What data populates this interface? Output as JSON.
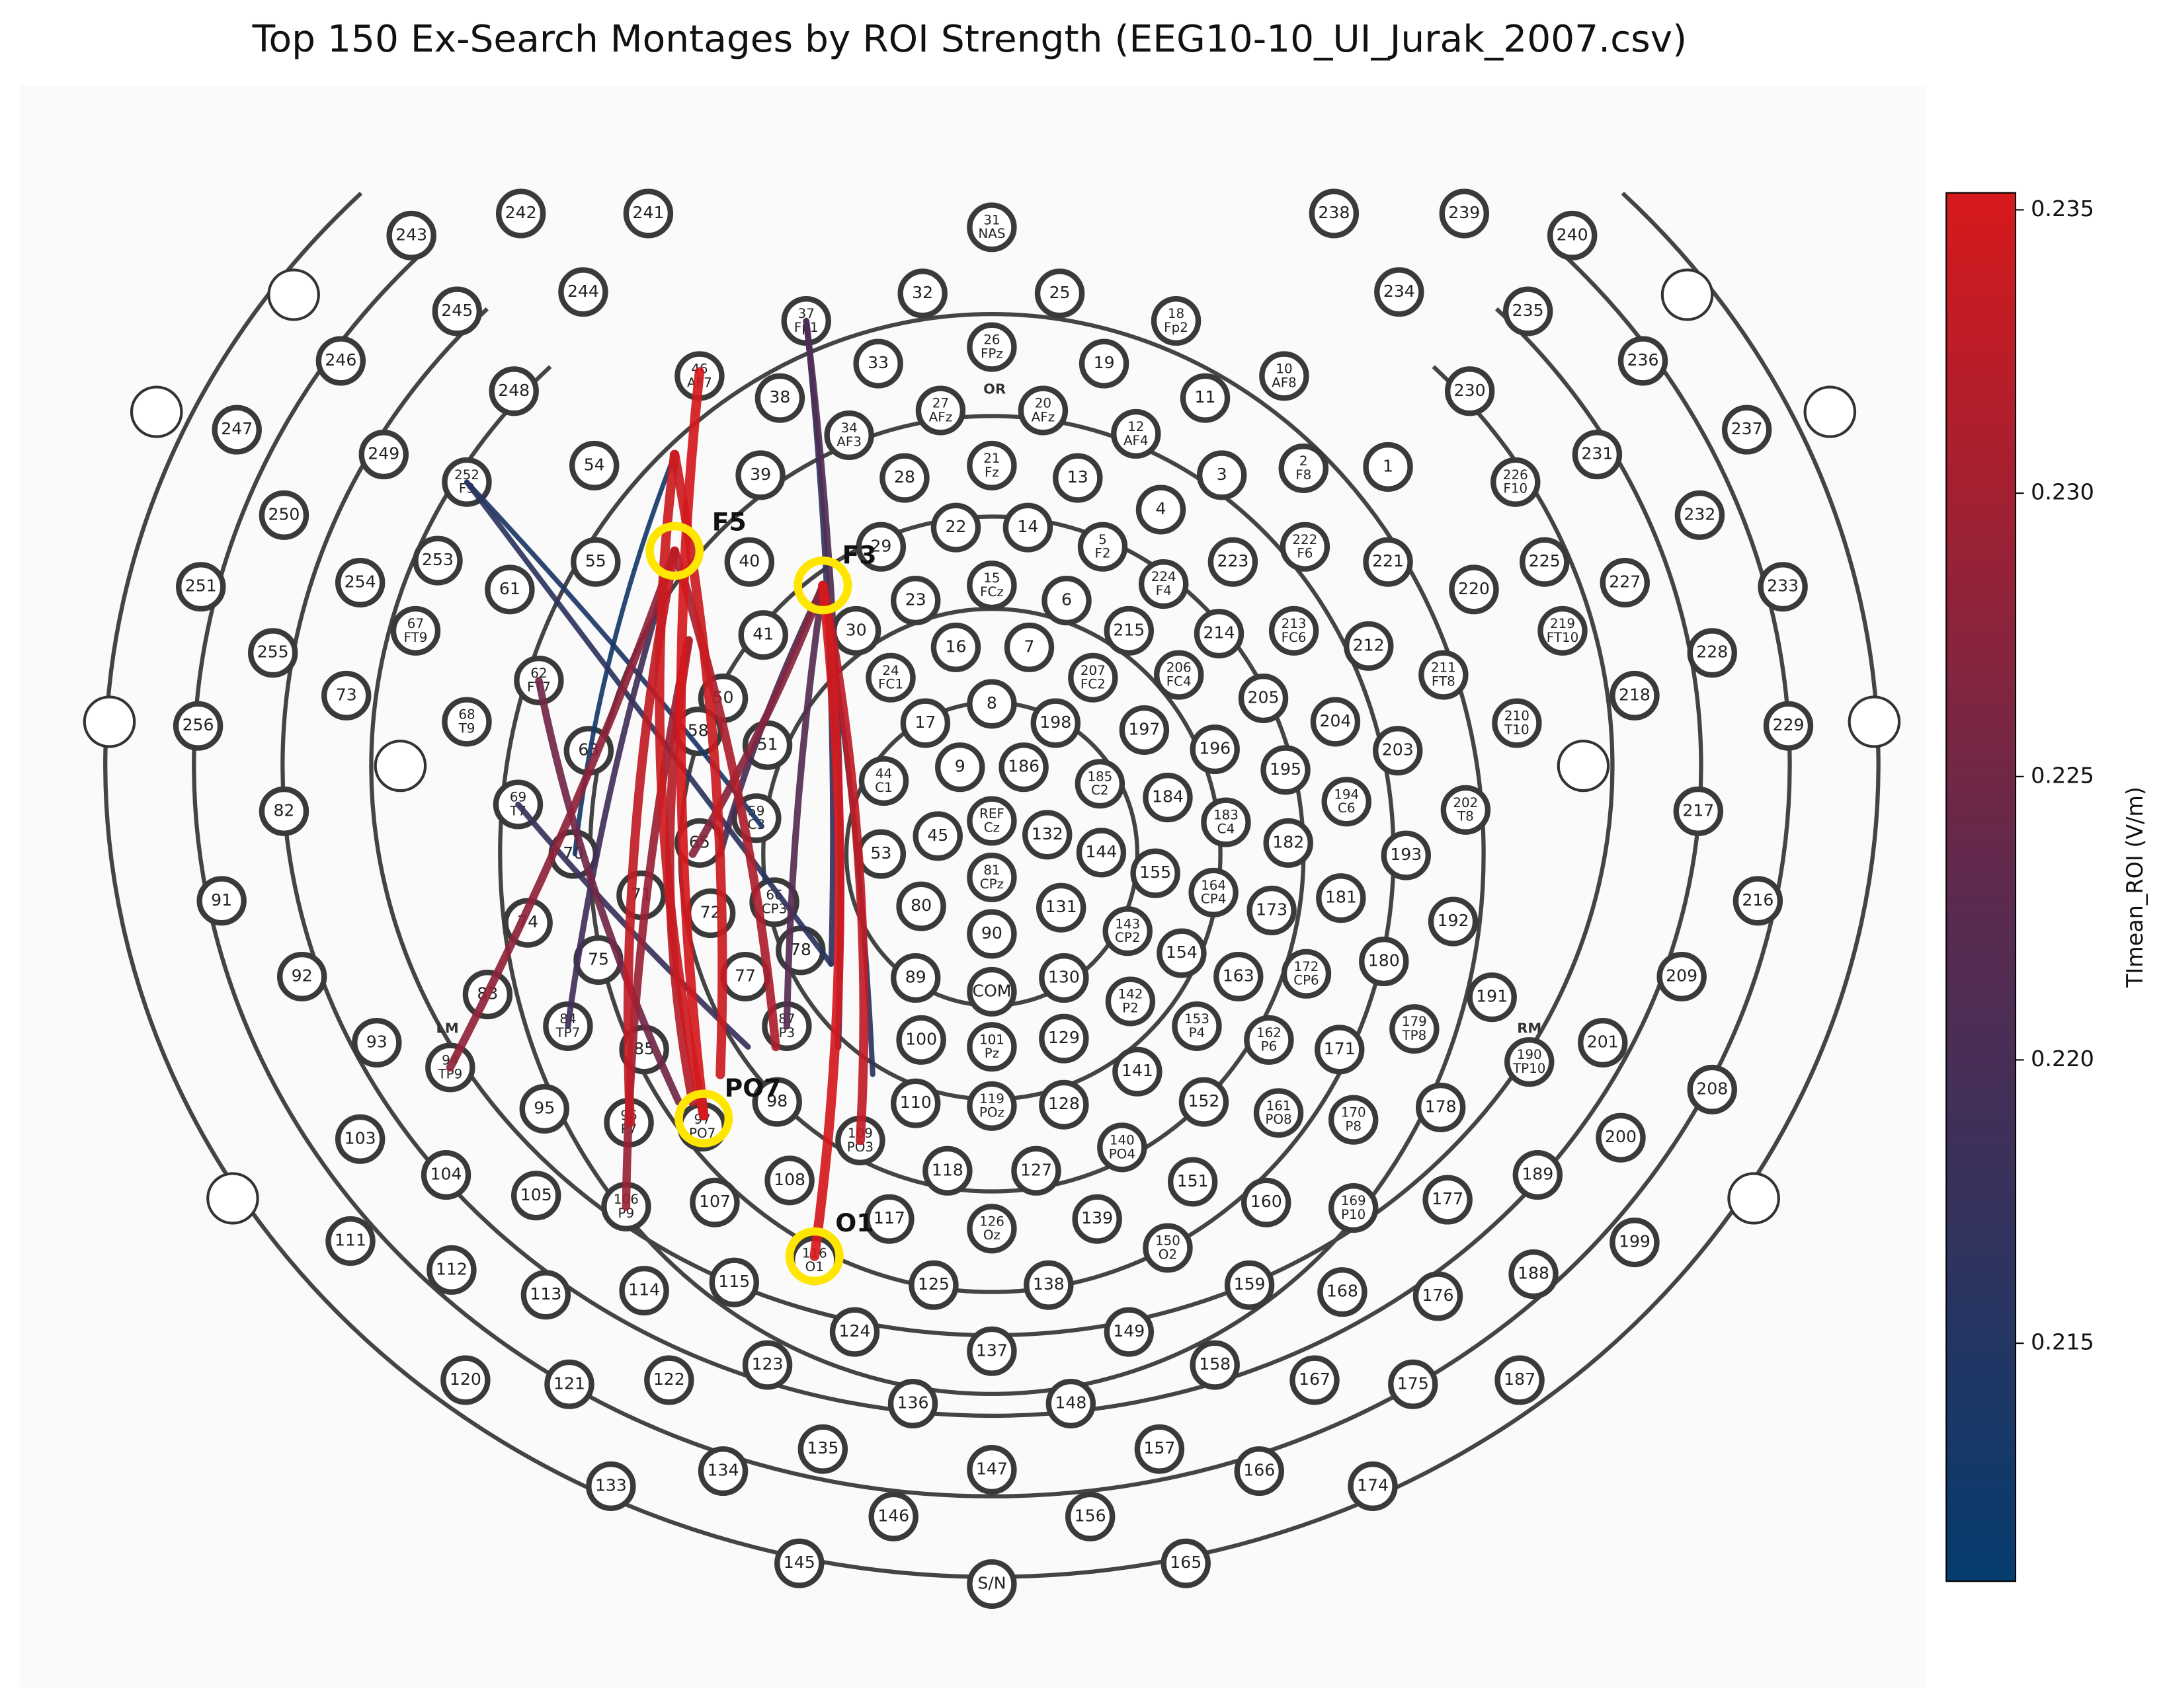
{
  "title": "Top 150 Ex-Search Montages by ROI Strength (EEG10-10_UI_Jurak_2007.csv)",
  "electrodes": [
    "243",
    "242",
    "241",
    "244",
    "245",
    "246",
    "247",
    "248",
    "249",
    "250",
    "251",
    "252 F9",
    "253",
    "254",
    "255",
    "256",
    "73",
    "67 FT9",
    "61",
    "68 T9",
    "54",
    "55",
    "62 FT7",
    "63",
    "69 T7",
    "70",
    "74",
    "75",
    "71",
    "72",
    "83",
    "84 TP7",
    "85",
    "91",
    "82",
    "92",
    "93",
    "94 TP9",
    "95",
    "96 P7",
    "97 PO7",
    "98",
    "103",
    "104",
    "105",
    "106 P9",
    "107",
    "108",
    "109 PO3",
    "111",
    "112",
    "113",
    "114",
    "115",
    "116 O1",
    "117",
    "118",
    "119 POz",
    "120",
    "121",
    "122",
    "123",
    "124",
    "125",
    "126 Oz",
    "127",
    "128",
    "129",
    "130",
    "133",
    "134",
    "135",
    "136",
    "137",
    "138",
    "139",
    "140 PO4",
    "141",
    "142 P2",
    "143 CP2",
    "144",
    "145",
    "146",
    "147",
    "148",
    "149",
    "150 O2",
    "151",
    "152",
    "153 P4",
    "154",
    "155",
    "156",
    "157",
    "158",
    "159",
    "160",
    "161 PO8",
    "162 P6",
    "163",
    "164 CP4",
    "165",
    "166",
    "167",
    "168",
    "169 P10",
    "170 P8",
    "171",
    "172 CP6",
    "173",
    "174",
    "175",
    "176",
    "177",
    "178",
    "179 TP8",
    "180",
    "181",
    "182",
    "183 C4",
    "184",
    "185 C2",
    "186",
    "187",
    "188",
    "189",
    "190 TP10",
    "191",
    "192",
    "193",
    "194 C6",
    "195",
    "196",
    "197",
    "198",
    "199",
    "200",
    "201",
    "202 T8",
    "203",
    "204",
    "205",
    "206 FC4",
    "207 FC2",
    "208",
    "209",
    "210 T10",
    "211 FT8",
    "212",
    "213 FC6",
    "214",
    "215",
    "216",
    "217",
    "218",
    "219 FT10",
    "220",
    "221",
    "222 F6",
    "223",
    "224 F4",
    "225",
    "226 F10",
    "227",
    "228",
    "229",
    "230",
    "231",
    "232",
    "233",
    "234",
    "235",
    "236",
    "237",
    "238",
    "239",
    "240",
    "31 NAS",
    "32",
    "25",
    "37 Fp1",
    "18 Fp2",
    "26 FPz",
    "19",
    "33",
    "38",
    "11",
    "46 AF7",
    "10 AF8",
    "27 AFz",
    "20 AFz",
    "34 AF3",
    "12 AF4",
    "2 F8",
    "1",
    "3",
    "39",
    "28",
    "21 Fz",
    "13",
    "4",
    "22",
    "14",
    "5 F2",
    "29",
    "40",
    "23",
    "15 FCz",
    "6",
    "30",
    "16",
    "7",
    "41",
    "24 FC1",
    "17",
    "8",
    "9",
    "50",
    "51",
    "REF Cz",
    "45",
    "132",
    "81 CPz",
    "131",
    "80",
    "90",
    "89",
    "COM",
    "100",
    "101 Pz",
    "110",
    "44 C1",
    "53",
    "58",
    "65",
    "59 C3",
    "66 CP3",
    "87 P3",
    "77",
    "78",
    "S/N"
  ],
  "annotations": [
    "OR",
    "LM",
    "RM"
  ],
  "roi": [
    "F5",
    "F3",
    "PO7",
    "O1"
  ],
  "montages": {
    "values": [
      0.213,
      0.214,
      0.216,
      0.216,
      0.217,
      0.218,
      0.219,
      0.22,
      0.221,
      0.222,
      0.225,
      0.227,
      0.228,
      0.229,
      0.231,
      0.232,
      0.233,
      0.233,
      0.234,
      0.234,
      0.235,
      0.235
    ]
  },
  "colorbar": {
    "label": "TImean_ROI (V/m)",
    "lim": [
      0.2108,
      0.2353
    ],
    "ticks": [
      0.215,
      {
        "value": 0.22,
        "label": "0.220"
      },
      0.225,
      {
        "value": 0.23,
        "label": "0.230"
      },
      0.235
    ]
  }
}
